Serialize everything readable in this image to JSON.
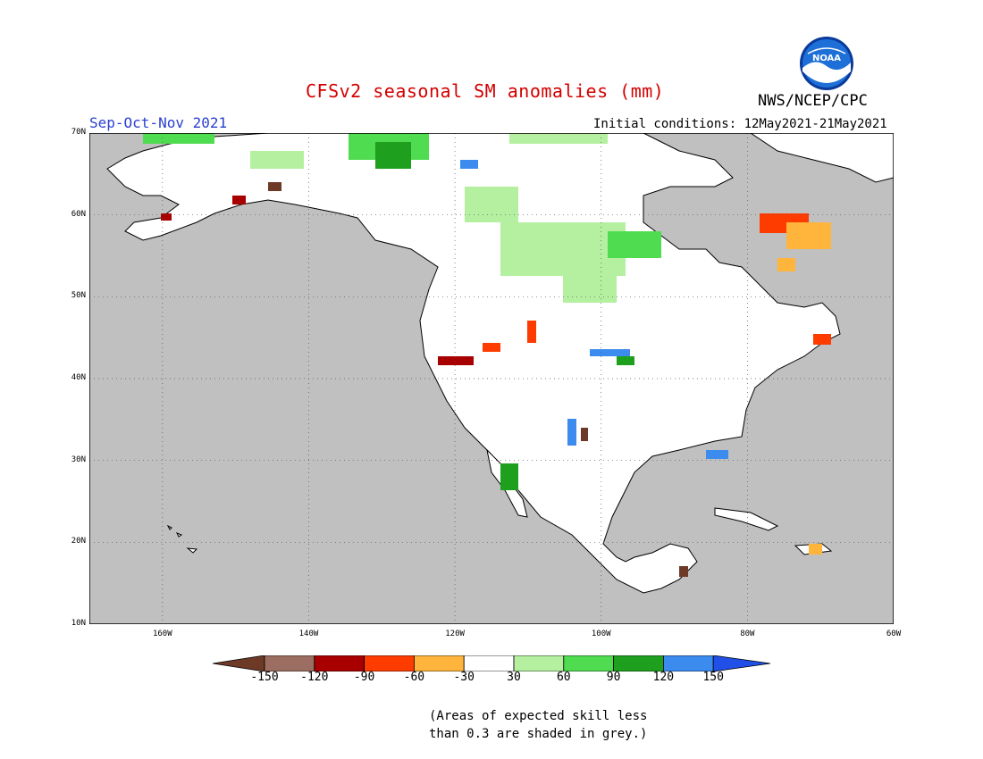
{
  "header": {
    "title": "CFSv2 seasonal SM anomalies (mm)",
    "season": "Sep-Oct-Nov 2021",
    "initial_conditions": "Initial conditions: 12May2021-21May2021",
    "agency": "NWS/NCEP/CPC",
    "logo_text": "NOAA",
    "logo": "noaa-logo-icon"
  },
  "map": {
    "lon_range": [
      -170,
      -60
    ],
    "lat_range": [
      10,
      70
    ],
    "lat_labels": [
      "10N",
      "20N",
      "30N",
      "40N",
      "50N",
      "60N",
      "70N"
    ],
    "lon_labels": [
      "160W",
      "140W",
      "120W",
      "100W",
      "80W",
      "60W"
    ],
    "grid_style": "dotted",
    "no_skill_color": "#c0c0c0"
  },
  "legend": {
    "ticks": [
      "-150",
      "-120",
      "-90",
      "-60",
      "-30",
      "30",
      "60",
      "90",
      "120",
      "150"
    ],
    "colors": [
      "#6e3a28",
      "#9c6e62",
      "#a80000",
      "#ff3c00",
      "#ffb43c",
      "#ffffff",
      "#b4f0a0",
      "#50dc50",
      "#1ea01e",
      "#3c8cf0",
      "#2050e8"
    ]
  },
  "note": {
    "line1": "(Areas of expected skill less",
    "line2": "than 0.3 are shaded in grey.)"
  }
}
